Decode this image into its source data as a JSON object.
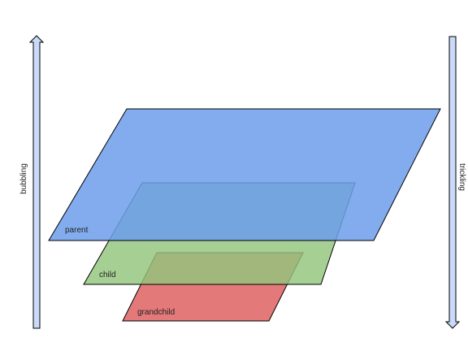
{
  "arrows": {
    "left_label": "bubbling",
    "right_label": "trickling"
  },
  "layers": [
    {
      "label": "parent",
      "fill": "#6d9eeb"
    },
    {
      "label": "child",
      "fill": "#93c47d"
    },
    {
      "label": "grandchild",
      "fill": "#e06666"
    }
  ],
  "colors": {
    "arrow_fill": "#c9daf8",
    "outline": "#000000"
  }
}
